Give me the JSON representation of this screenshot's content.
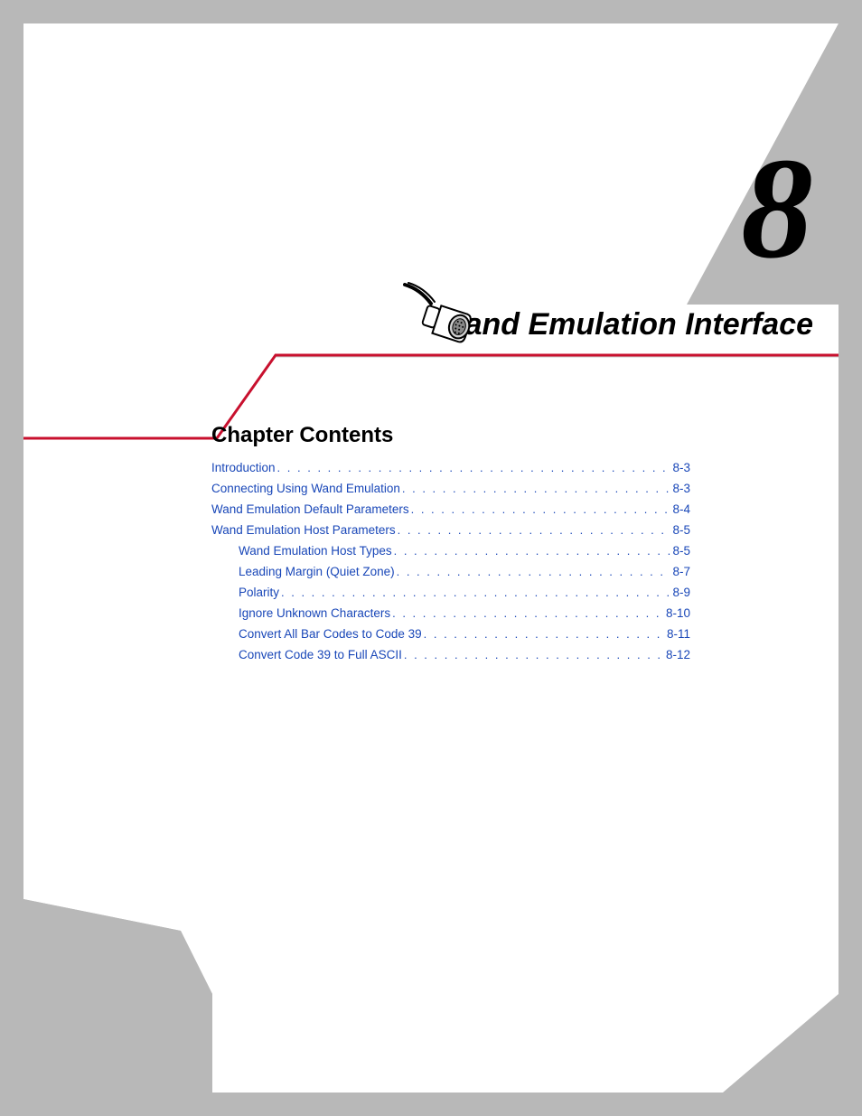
{
  "page": {
    "background_color": "#b8b8b8",
    "paper_color": "#ffffff",
    "accent_color": "#c8102e",
    "link_color": "#1947b8"
  },
  "chapter": {
    "number": "8",
    "title": "Wand Emulation Interface"
  },
  "contents": {
    "heading": "Chapter Contents",
    "items": [
      {
        "label": "Introduction",
        "page": "8-3",
        "indent": 0
      },
      {
        "label": "Connecting Using Wand Emulation",
        "page": "8-3",
        "indent": 0
      },
      {
        "label": "Wand Emulation Default Parameters",
        "page": "8-4",
        "indent": 0
      },
      {
        "label": "Wand Emulation Host Parameters",
        "page": "8-5",
        "indent": 0
      },
      {
        "label": "Wand Emulation Host Types",
        "page": "8-5",
        "indent": 1
      },
      {
        "label": "Leading Margin (Quiet Zone)",
        "page": "8-7",
        "indent": 1
      },
      {
        "label": "Polarity",
        "page": "8-9",
        "indent": 1
      },
      {
        "label": "Ignore Unknown Characters",
        "page": "8-10",
        "indent": 1
      },
      {
        "label": "Convert All Bar Codes to Code 39",
        "page": "8-11",
        "indent": 1
      },
      {
        "label": "Convert Code 39 to Full ASCII",
        "page": "8-12",
        "indent": 1
      }
    ]
  }
}
